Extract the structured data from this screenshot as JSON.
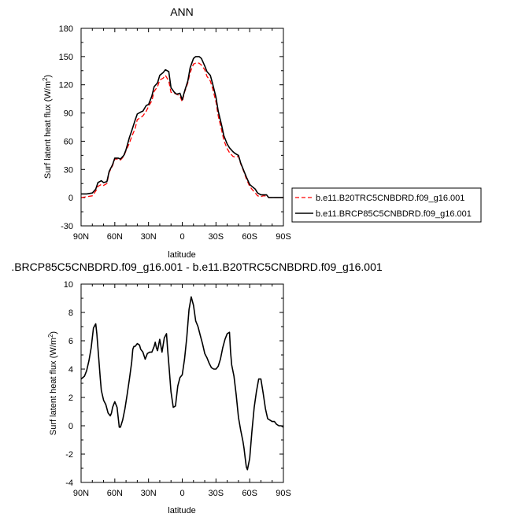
{
  "chart_data": [
    {
      "type": "line",
      "title": "ANN",
      "xlabel": "latitude",
      "ylabel": "Surf latent heat flux (W/m",
      "ylabel_sup": "2",
      "ylabel_close": ")",
      "xlim": [
        -90,
        90
      ],
      "ylim": [
        -30,
        180
      ],
      "xticks": [
        -90,
        -60,
        -30,
        0,
        30,
        60,
        90
      ],
      "xtick_labels": [
        "90N",
        "60N",
        "30N",
        "0",
        "30S",
        "60S",
        "90S"
      ],
      "yticks": [
        -30,
        0,
        30,
        60,
        90,
        120,
        150,
        180
      ],
      "ytick_labels": [
        "-30",
        "0",
        "30",
        "60",
        "90",
        "120",
        "150",
        "180"
      ],
      "legend_position": "right",
      "series": [
        {
          "name": "b.e11.B20TRC5CNBDRD.f09_g16.001",
          "color": "#ff0000",
          "dash": true,
          "x": [
            -90,
            -85,
            -80,
            -77,
            -75,
            -72,
            -70,
            -67,
            -65,
            -62,
            -60,
            -57,
            -55,
            -52,
            -50,
            -47,
            -45,
            -42,
            -40,
            -37,
            -35,
            -32,
            -30,
            -27,
            -25,
            -22,
            -20,
            -17,
            -15,
            -12,
            -10,
            -7,
            -5,
            -2,
            0,
            2,
            5,
            7,
            10,
            12,
            15,
            17,
            20,
            22,
            25,
            27,
            30,
            32,
            35,
            37,
            40,
            42,
            45,
            47,
            50,
            52,
            55,
            57,
            60,
            62,
            65,
            67,
            70,
            72,
            75,
            77,
            80,
            85,
            90
          ],
          "y": [
            0,
            1,
            2,
            7,
            12,
            14,
            13,
            15,
            27,
            34,
            41,
            41,
            40,
            44,
            50,
            58,
            65,
            73,
            83,
            85,
            87,
            92,
            97,
            103,
            113,
            118,
            125,
            127,
            130,
            124,
            112,
            111,
            110,
            108,
            102,
            112,
            122,
            133,
            142,
            143,
            143,
            141,
            136,
            129,
            124,
            116,
            102,
            87,
            72,
            61,
            52,
            48,
            44,
            43,
            44,
            36,
            27,
            20,
            12,
            9,
            5,
            2,
            1,
            2,
            2,
            0,
            0,
            0,
            0
          ]
        },
        {
          "name": "b.e11.BRCP85C5CNBDRD.f09_g16.001",
          "color": "#000000",
          "dash": false,
          "x": [
            -90,
            -85,
            -80,
            -77,
            -75,
            -72,
            -70,
            -67,
            -65,
            -62,
            -60,
            -57,
            -55,
            -52,
            -50,
            -47,
            -45,
            -42,
            -40,
            -37,
            -35,
            -32,
            -30,
            -27,
            -25,
            -22,
            -20,
            -17,
            -15,
            -12,
            -10,
            -7,
            -5,
            -2,
            0,
            2,
            5,
            7,
            10,
            12,
            15,
            17,
            20,
            22,
            25,
            27,
            30,
            32,
            35,
            37,
            40,
            42,
            45,
            47,
            50,
            52,
            55,
            57,
            60,
            62,
            65,
            67,
            70,
            72,
            75,
            77,
            80,
            85,
            90
          ],
          "y": [
            4,
            4,
            5,
            9,
            16,
            18,
            16,
            17,
            28,
            35,
            42,
            42,
            41,
            45,
            51,
            64,
            71,
            82,
            89,
            91,
            92,
            98,
            99,
            108,
            118,
            122,
            130,
            133,
            136,
            134,
            117,
            112,
            110,
            111,
            104,
            113,
            124,
            138,
            148,
            150,
            150,
            148,
            140,
            134,
            130,
            121,
            107,
            92,
            77,
            66,
            57,
            53,
            49,
            47,
            45,
            37,
            28,
            22,
            14,
            12,
            9,
            5,
            3,
            3,
            3,
            0,
            0,
            0,
            0
          ]
        }
      ]
    },
    {
      "type": "line",
      "title": ".BRCP85C5CNBDRD.f09_g16.001 - b.e11.B20TRC5CNBDRD.f09_g16.001",
      "xlabel": "latitude",
      "ylabel": "Surf latent heat flux (W/m",
      "ylabel_sup": "2",
      "ylabel_close": ")",
      "xlim": [
        -90,
        90
      ],
      "ylim": [
        -4,
        10
      ],
      "xticks": [
        -90,
        -60,
        -30,
        0,
        30,
        60,
        90
      ],
      "xtick_labels": [
        "90N",
        "60N",
        "30N",
        "0",
        "30S",
        "60S",
        "90S"
      ],
      "yticks": [
        -4,
        -2,
        0,
        2,
        4,
        6,
        8,
        10
      ],
      "ytick_labels": [
        "-4",
        "-2",
        "0",
        "2",
        "4",
        "6",
        "8",
        "10"
      ],
      "series": [
        {
          "color": "#000000",
          "dash": false,
          "x": [
            -90,
            -87,
            -85,
            -83,
            -81,
            -79,
            -77,
            -76,
            -75,
            -74,
            -73,
            -72,
            -70,
            -68,
            -66,
            -64,
            -63,
            -62,
            -60,
            -58,
            -57,
            -56,
            -55,
            -53,
            -51,
            -49,
            -47,
            -45,
            -44,
            -43,
            -42,
            -40,
            -38,
            -37,
            -35,
            -33,
            -31,
            -29,
            -27,
            -25,
            -24,
            -23,
            -22,
            -20,
            -18,
            -16,
            -14,
            -13,
            -12,
            -10,
            -8,
            -6,
            -4,
            -2,
            0,
            2,
            4,
            6,
            8,
            10,
            12,
            14,
            16,
            18,
            20,
            22,
            24,
            26,
            28,
            30,
            32,
            34,
            36,
            38,
            40,
            42,
            43,
            44,
            46,
            48,
            50,
            52,
            54,
            55,
            56,
            57,
            58,
            60,
            62,
            64,
            66,
            68,
            70,
            72,
            74,
            76,
            78,
            80,
            82,
            84,
            86,
            88,
            90
          ],
          "y": [
            3.3,
            3.5,
            3.9,
            4.6,
            5.5,
            6.9,
            7.2,
            6.5,
            5.5,
            4.5,
            3.4,
            2.5,
            1.8,
            1.5,
            0.9,
            0.7,
            0.9,
            1.3,
            1.7,
            1.3,
            0.6,
            -0.1,
            -0.1,
            0.4,
            1.2,
            2.2,
            3.3,
            4.5,
            5.4,
            5.6,
            5.6,
            5.8,
            5.7,
            5.4,
            5.2,
            4.7,
            5.1,
            5.2,
            5.2,
            5.6,
            5.9,
            5.5,
            5.3,
            6.1,
            5.2,
            6.2,
            6.5,
            5.4,
            4.4,
            2.4,
            1.3,
            1.4,
            2.8,
            3.4,
            3.6,
            4.7,
            6.2,
            8.2,
            9.1,
            8.5,
            7.4,
            7.0,
            6.4,
            5.8,
            5.1,
            4.8,
            4.4,
            4.1,
            4.0,
            4.0,
            4.2,
            4.7,
            5.5,
            6.1,
            6.5,
            6.6,
            5.2,
            4.3,
            3.5,
            2.2,
            0.6,
            -0.3,
            -1.1,
            -1.6,
            -2.3,
            -2.9,
            -3.1,
            -2.3,
            -0.4,
            1.3,
            2.4,
            3.3,
            3.3,
            2.3,
            1.2,
            0.5,
            0.4,
            0.3,
            0.3,
            0.1,
            0.0,
            0.0,
            -0.1
          ]
        }
      ]
    }
  ]
}
